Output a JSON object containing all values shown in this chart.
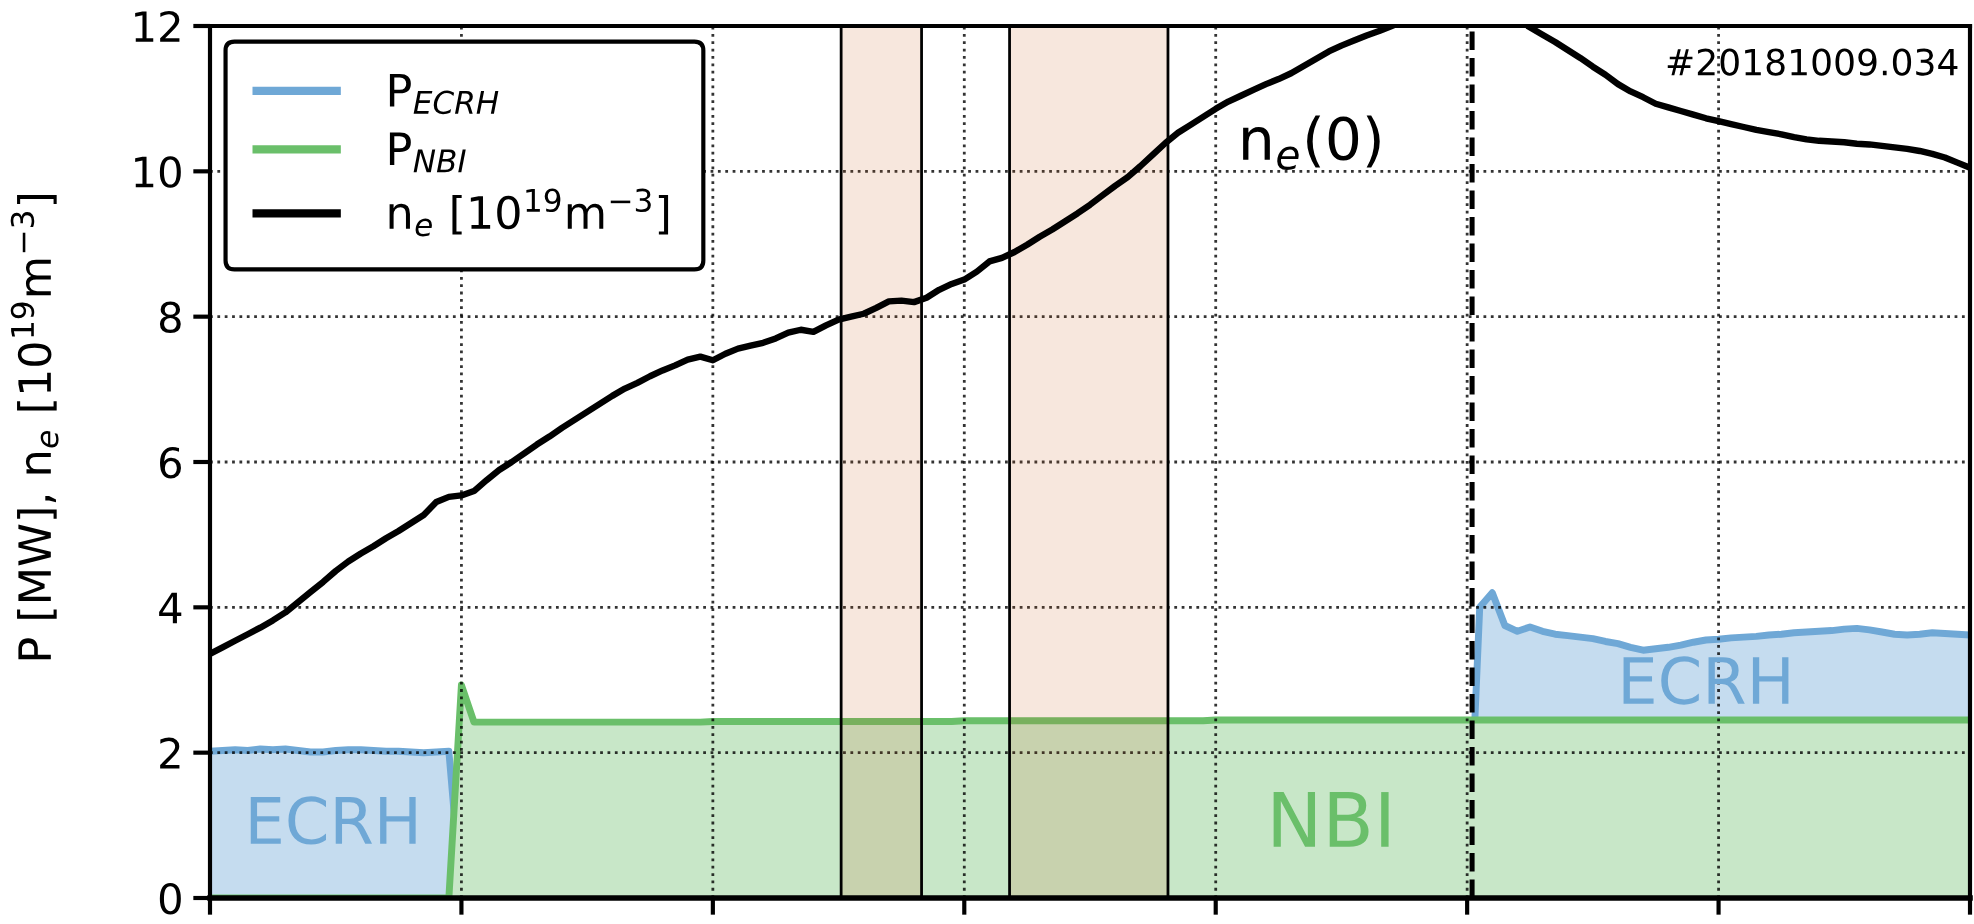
{
  "chart_data": {
    "type": "area",
    "ylabel": "P [MW], n$_{e}$ [10$^{19}$m$^{−3}$]",
    "categories": [
      null,
      null,
      null,
      null,
      null,
      null,
      null,
      null,
      null,
      null,
      null,
      null,
      null,
      null,
      null,
      null,
      null,
      null,
      null,
      null,
      null,
      null,
      null,
      null,
      null,
      null,
      null,
      null,
      null,
      null,
      null,
      null,
      null,
      null,
      null,
      null,
      null,
      null,
      null,
      null,
      null,
      null,
      null,
      null,
      null,
      null,
      null,
      null,
      null,
      null,
      null,
      null,
      null,
      null,
      null,
      null,
      null,
      null,
      null,
      null,
      null,
      null,
      null,
      null,
      null,
      null,
      null,
      null,
      null,
      null,
      null,
      null,
      null,
      null,
      null,
      null,
      null,
      null,
      null,
      null,
      null,
      null,
      null,
      null,
      null,
      null,
      null,
      null,
      null,
      null,
      null,
      null,
      null,
      null,
      null,
      null,
      null,
      null,
      null,
      null,
      null,
      null,
      null,
      null,
      null,
      null,
      null,
      null,
      null,
      null,
      null,
      null,
      null,
      null,
      null,
      null,
      null,
      null,
      null,
      null,
      null,
      null,
      null,
      null,
      null,
      null,
      null,
      null,
      null,
      null,
      null,
      null,
      null,
      null,
      null,
      null,
      null,
      null,
      null,
      null,
      null
    ],
    "ylim": [
      0,
      12
    ],
    "yticks": [
      0,
      2,
      4,
      6,
      8,
      10,
      12
    ],
    "tick_labels": "y",
    "grid": true,
    "legend": "top left",
    "series": [
      {
        "name": "P$_{ECRH}$",
        "color": "#6fa8d6",
        "values": [
          2.02,
          2.03,
          2.04,
          2.03,
          2.05,
          2.04,
          2.05,
          2.03,
          2.01,
          2.01,
          2.03,
          2.04,
          2.04,
          2.03,
          2.02,
          2.02,
          2.01,
          2.0,
          2.01,
          2.02,
          0,
          0,
          0,
          0,
          0,
          0,
          0,
          0,
          0,
          0,
          0,
          0,
          0,
          0,
          0,
          0,
          0,
          0,
          0,
          0,
          0,
          0,
          0,
          0,
          0,
          0,
          0,
          0,
          0,
          0,
          0,
          0,
          0,
          0,
          0,
          0,
          0,
          0,
          0,
          0,
          0,
          0,
          0,
          0,
          0,
          0,
          0,
          0,
          0,
          0,
          0,
          0,
          0,
          0,
          0,
          0,
          0,
          0,
          0,
          0,
          0,
          0,
          0,
          0,
          0,
          0,
          0,
          0,
          0,
          0,
          0,
          0,
          0,
          0,
          0,
          0,
          0,
          0,
          0,
          0,
          0,
          4.0,
          4.2,
          3.75,
          3.67,
          3.73,
          3.67,
          3.63,
          3.61,
          3.59,
          3.57,
          3.53,
          3.5,
          3.45,
          3.41,
          3.43,
          3.45,
          3.48,
          3.52,
          3.55,
          3.56,
          3.58,
          3.59,
          3.6,
          3.62,
          3.63,
          3.65,
          3.66,
          3.67,
          3.68,
          3.7,
          3.71,
          3.69,
          3.66,
          3.63,
          3.62,
          3.63,
          3.65,
          3.64,
          3.63,
          3.62
        ]
      },
      {
        "name": "P$_{NBI}$",
        "color": "#6abf6a",
        "values": [
          0,
          0,
          0,
          0,
          0,
          0,
          0,
          0,
          0,
          0,
          0,
          0,
          0,
          0,
          0,
          0,
          0,
          0,
          0,
          0,
          2.93,
          2.42,
          2.42,
          2.42,
          2.42,
          2.42,
          2.42,
          2.42,
          2.42,
          2.42,
          2.42,
          2.42,
          2.42,
          2.42,
          2.42,
          2.42,
          2.42,
          2.42,
          2.42,
          2.42,
          2.43,
          2.43,
          2.43,
          2.43,
          2.43,
          2.43,
          2.43,
          2.43,
          2.43,
          2.43,
          2.43,
          2.43,
          2.43,
          2.43,
          2.43,
          2.43,
          2.43,
          2.43,
          2.43,
          2.43,
          2.44,
          2.44,
          2.44,
          2.44,
          2.44,
          2.44,
          2.44,
          2.44,
          2.44,
          2.44,
          2.44,
          2.44,
          2.44,
          2.44,
          2.44,
          2.44,
          2.44,
          2.44,
          2.44,
          2.44,
          2.45,
          2.45,
          2.45,
          2.45,
          2.45,
          2.45,
          2.45,
          2.45,
          2.45,
          2.45,
          2.45,
          2.45,
          2.45,
          2.45,
          2.45,
          2.45,
          2.45,
          2.45,
          2.45,
          2.45,
          2.45,
          2.45,
          2.45,
          2.45,
          2.45,
          2.45,
          2.45,
          2.45,
          2.45,
          2.45,
          2.45,
          2.45,
          2.45,
          2.45,
          2.45,
          2.45,
          2.45,
          2.45,
          2.45,
          2.45,
          2.45,
          2.45,
          2.45,
          2.45,
          2.45,
          2.45,
          2.45,
          2.45,
          2.45,
          2.45,
          2.45,
          2.45,
          2.45,
          2.45,
          2.45,
          2.45,
          2.45,
          2.45,
          2.45,
          2.45,
          2.45
        ]
      },
      {
        "name": "n$_{e}$ [10$^{19}$m$^{−3}$]",
        "type": "line",
        "color": "#000000",
        "values": [
          3.36,
          3.45,
          3.54,
          3.63,
          3.72,
          3.82,
          3.93,
          4.07,
          4.21,
          4.35,
          4.5,
          4.63,
          4.74,
          4.84,
          4.95,
          5.05,
          5.16,
          5.27,
          5.45,
          5.52,
          5.54,
          5.6,
          5.75,
          5.89,
          6.0,
          6.12,
          6.24,
          6.35,
          6.47,
          6.58,
          6.69,
          6.8,
          6.91,
          7.01,
          7.09,
          7.18,
          7.26,
          7.33,
          7.41,
          7.45,
          7.4,
          7.49,
          7.56,
          7.6,
          7.64,
          7.7,
          7.78,
          7.82,
          7.79,
          7.88,
          7.96,
          8.0,
          8.04,
          8.12,
          8.21,
          8.22,
          8.2,
          8.26,
          8.37,
          8.45,
          8.51,
          8.62,
          8.76,
          8.81,
          8.89,
          8.99,
          9.1,
          9.2,
          9.31,
          9.42,
          9.54,
          9.67,
          9.8,
          9.92,
          10.07,
          10.23,
          10.39,
          10.53,
          10.64,
          10.75,
          10.86,
          10.96,
          11.04,
          11.12,
          11.2,
          11.27,
          11.35,
          11.45,
          11.55,
          11.65,
          11.73,
          11.8,
          11.87,
          11.93,
          12.0,
          null,
          null,
          null,
          null,
          null,
          null,
          null,
          null,
          null,
          null,
          11.98,
          11.88,
          11.78,
          11.67,
          11.56,
          11.44,
          11.33,
          11.2,
          11.1,
          11.02,
          10.93,
          10.88,
          10.83,
          10.78,
          10.73,
          10.69,
          10.65,
          10.61,
          10.57,
          10.54,
          10.51,
          10.47,
          10.44,
          10.42,
          10.41,
          10.4,
          10.38,
          10.37,
          10.35,
          10.33,
          10.31,
          10.28,
          10.24,
          10.19,
          10.12,
          10.05
        ]
      }
    ],
    "annotations": [
      "#20181009.034",
      "n$_{e}$(0)",
      "ECRH",
      "NBI",
      "ECRH"
    ]
  }
}
